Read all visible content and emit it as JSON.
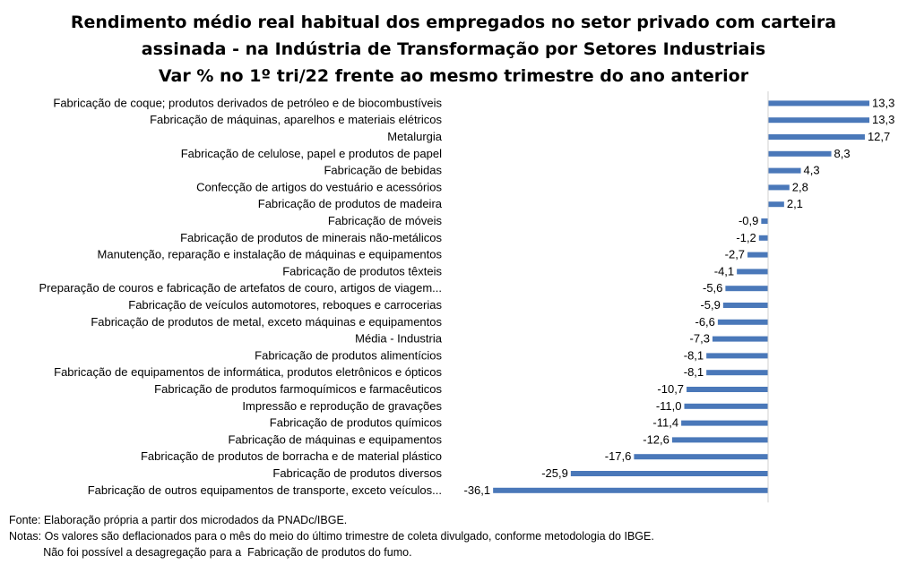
{
  "title_lines": [
    "Rendimento médio real habitual dos empregados no setor privado com carteira",
    "assinada - na Indústria de Transformação por Setores Industriais",
    "Var % no 1º tri/22 frente ao mesmo trimestre do ano anterior"
  ],
  "chart_data": {
    "type": "bar",
    "orientation": "horizontal",
    "categories": [
      "Fabricação de coque; produtos derivados de petróleo e de biocombustíveis",
      "Fabricação de máquinas, aparelhos e materiais elétricos",
      "Metalurgia",
      "Fabricação de celulose, papel e produtos de papel",
      "Fabricação de bebidas",
      "Confecção de artigos do vestuário e acessórios",
      "Fabricação de produtos de madeira",
      "Fabricação de móveis",
      "Fabricação de produtos de minerais não-metálicos",
      "Manutenção, reparação e instalação de máquinas e equipamentos",
      "Fabricação de produtos têxteis",
      "Preparação de couros e fabricação de artefatos de couro, artigos de viagem...",
      "Fabricação de veículos automotores, reboques e carrocerias",
      "Fabricação de produtos de metal, exceto máquinas e equipamentos",
      "Média - Industria",
      "Fabricação de produtos alimentícios",
      "Fabricação de equipamentos de informática, produtos eletrônicos e ópticos",
      "Fabricação de produtos farmoquímicos e farmacêuticos",
      "Impressão e reprodução de gravações",
      "Fabricação de produtos químicos",
      "Fabricação de máquinas e equipamentos",
      "Fabricação de produtos de borracha e de material plástico",
      "Fabricação de produtos diversos",
      "Fabricação de outros equipamentos de transporte, exceto veículos..."
    ],
    "values": [
      13.3,
      13.3,
      12.7,
      8.3,
      4.3,
      2.8,
      2.1,
      -0.9,
      -1.2,
      -2.7,
      -4.1,
      -5.6,
      -5.9,
      -6.6,
      -7.3,
      -8.1,
      -8.1,
      -10.7,
      -11.0,
      -11.4,
      -12.6,
      -17.6,
      -25.9,
      -36.1
    ],
    "value_labels": [
      "13,3",
      "13,3",
      "12,7",
      "8,3",
      "4,3",
      "2,8",
      "2,1",
      "-0,9",
      "-1,2",
      "-2,7",
      "-4,1",
      "-5,6",
      "-5,9",
      "-6,6",
      "-7,3",
      "-8,1",
      "-8,1",
      "-10,7",
      "-11,0",
      "-11,4",
      "-12,6",
      "-17,6",
      "-25,9",
      "-36,1"
    ],
    "bar_color": "#4a78b9",
    "axis_color": "#d0d0d0",
    "grid": false,
    "legend": "none"
  },
  "notes": [
    "Fonte: Elaboração própria a partir dos microdados da PNADc/IBGE.",
    "Notas: Os valores são deflacionados para o mês do meio do último trimestre de coleta divulgado, conforme metodologia do IBGE.",
    "           Não foi possível a desagregação para a  Fabricação de produtos do fumo."
  ]
}
